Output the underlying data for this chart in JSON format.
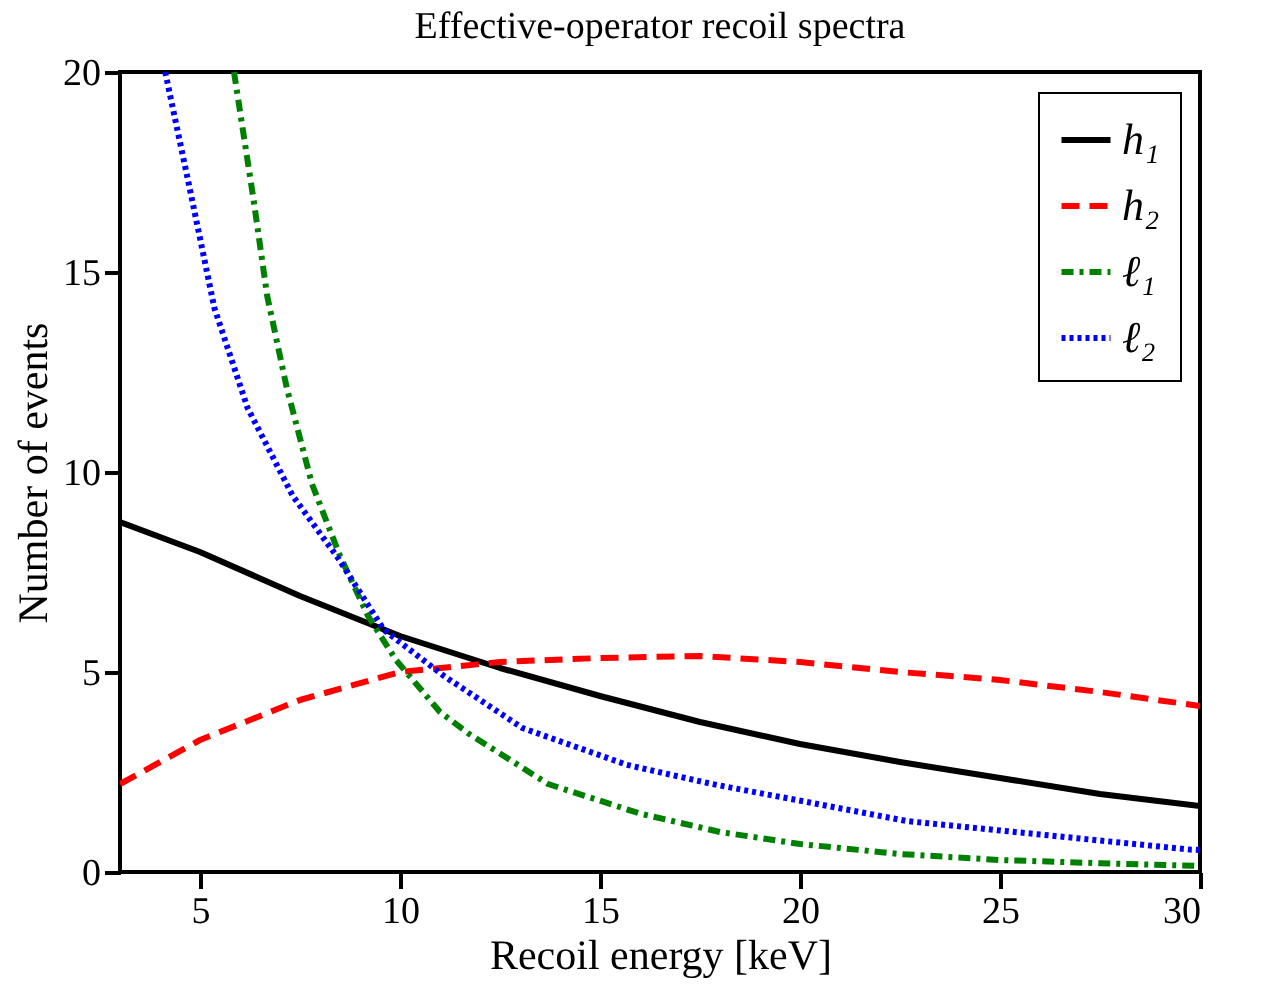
{
  "chart_data": {
    "type": "line",
    "title": "Effective-operator recoil spectra",
    "xlabel": "Recoil energy [keV]",
    "ylabel": "Number of events",
    "xlim": [
      3,
      30
    ],
    "xticks": [
      5,
      10,
      15,
      20,
      25,
      30
    ],
    "ylim": [
      0,
      20
    ],
    "yticks": [
      0,
      5,
      10,
      15,
      20
    ],
    "legend": "top right",
    "series": [
      {
        "name": "h₁",
        "color": "#000000",
        "line_style": "solid",
        "x": [
          3,
          5,
          7.5,
          10,
          12.5,
          15,
          17.5,
          20,
          22.5,
          25,
          27.5,
          30
        ],
        "values": [
          8.75,
          8.0,
          6.9,
          5.9,
          5.1,
          4.4,
          3.75,
          3.2,
          2.75,
          2.35,
          1.95,
          1.65
        ]
      },
      {
        "name": "h₂",
        "color": "#ff0000",
        "line_style": "dashed",
        "x": [
          3,
          5,
          7.5,
          10,
          12.5,
          15,
          17.5,
          20,
          22.5,
          25,
          27.5,
          30
        ],
        "values": [
          2.2,
          3.3,
          4.3,
          5.0,
          5.25,
          5.35,
          5.4,
          5.25,
          5.0,
          4.8,
          4.5,
          4.15
        ]
      },
      {
        "name": "ℓ₁",
        "color": "#008000",
        "line_style": "dashdot",
        "x": [
          5.85,
          6.34,
          6.68,
          7.17,
          7.8,
          8.5,
          9.2,
          9.9,
          11,
          11.7,
          13.7,
          16,
          18,
          20,
          22.5,
          25,
          27.5,
          30
        ],
        "values": [
          20,
          16.8,
          14.4,
          12.1,
          9.7,
          7.9,
          6.4,
          5.3,
          4.0,
          3.47,
          2.2,
          1.46,
          1.0,
          0.7,
          0.45,
          0.3,
          0.22,
          0.15
        ]
      },
      {
        "name": "ℓ₂",
        "color": "#0000ff",
        "line_style": "dotted",
        "x": [
          4.13,
          4.72,
          5.36,
          6.19,
          7.32,
          8.45,
          9.6,
          11.1,
          13.06,
          15.67,
          17.8,
          22.7,
          29.75,
          30
        ],
        "values": [
          20,
          17.2,
          14.1,
          11.6,
          9.4,
          7.85,
          6.05,
          4.9,
          3.6,
          2.68,
          2.2,
          1.27,
          0.56,
          0.55
        ]
      }
    ]
  }
}
